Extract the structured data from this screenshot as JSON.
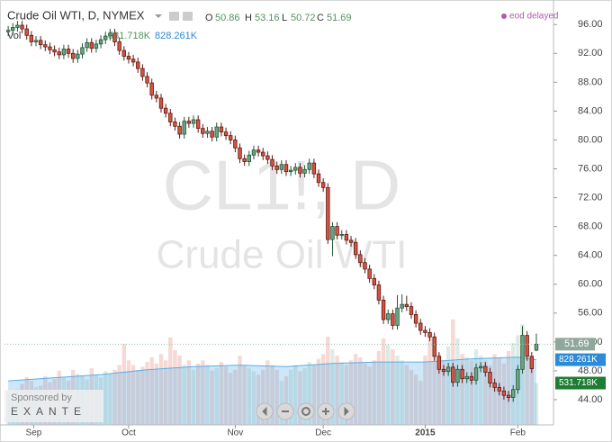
{
  "header": {
    "title": "Crude Oil WTI, D, NYMEX",
    "o": "O",
    "h": "H",
    "l": "L",
    "c": "C",
    "vol": "Vol",
    "status": "eod delayed"
  },
  "watermark": {
    "line1": "CL1!, D",
    "line2": "Crude Oil WTI"
  },
  "sponsor": {
    "label": "Sponsored by",
    "name": "EXANTE"
  },
  "chart_data": {
    "type": "candlestick",
    "up_color": "#6ba583",
    "down_color": "#d75442",
    "up_edge": "#225437",
    "down_edge": "#5b1a13",
    "xlim": [
      -0.8,
      117.7
    ],
    "xticks": [
      {
        "value": 5.5,
        "label": "Sep"
      },
      {
        "value": 26,
        "label": "Oct"
      },
      {
        "value": 49,
        "label": "Nov"
      },
      {
        "value": 68,
        "label": "Dec"
      },
      {
        "value": 90,
        "label": "2015"
      },
      {
        "value": 110,
        "label": "Feb"
      }
    ],
    "ylim": [
      40.5,
      99.4
    ],
    "yticks": [
      {
        "value": 44,
        "label": "44.00"
      },
      {
        "value": 48,
        "label": "48.00"
      },
      {
        "value": 52,
        "label": "52.00"
      },
      {
        "value": 56,
        "label": "56.00"
      },
      {
        "value": 60,
        "label": "60.00"
      },
      {
        "value": 64,
        "label": "64.00"
      },
      {
        "value": 68,
        "label": "68.00"
      },
      {
        "value": 72,
        "label": "72.00"
      },
      {
        "value": 76,
        "label": "76.00"
      },
      {
        "value": 80,
        "label": "80.00"
      },
      {
        "value": 84,
        "label": "84.00"
      },
      {
        "value": 88,
        "label": "88.00"
      },
      {
        "value": 92,
        "label": "92.00"
      },
      {
        "value": 96,
        "label": "96.00"
      }
    ],
    "open": [
      95.0,
      95.2,
      95.6,
      95.9,
      95.4,
      94.5,
      93.6,
      93.8,
      93.2,
      92.9,
      92.5,
      92.2,
      91.8,
      92.6,
      92.0,
      91.3,
      91.9,
      92.8,
      93.5,
      92.7,
      93.3,
      93.9,
      94.4,
      94.8,
      93.6,
      92.4,
      91.6,
      91.2,
      90.8,
      89.9,
      88.8,
      87.9,
      86.2,
      85.8,
      84.4,
      83.7,
      82.5,
      81.9,
      80.8,
      82.6,
      82.3,
      82.8,
      81.6,
      80.9,
      81.2,
      80.4,
      81.8,
      81.1,
      80.6,
      80.0,
      78.9,
      77.4,
      77.0,
      77.9,
      78.6,
      78.3,
      77.8,
      77.3,
      76.4,
      75.9,
      76.6,
      75.6,
      75.8,
      76.2,
      75.4,
      75.9,
      76.8,
      75.3,
      74.1,
      73.4,
      66.2,
      68.0,
      66.8,
      66.9,
      66.1,
      65.8,
      64.1,
      63.0,
      62.1,
      60.8,
      59.9,
      57.8,
      55.1,
      55.9,
      54.3,
      56.7,
      57.2,
      56.9,
      55.8,
      54.6,
      53.6,
      53.3,
      52.7,
      50.0,
      48.2,
      47.9,
      48.5,
      46.4,
      48.2,
      46.9,
      47.2,
      46.7,
      48.4,
      48.6,
      47.8,
      46.3,
      45.7,
      45.2,
      44.6,
      44.3,
      45.4,
      48.2,
      52.9,
      50.0,
      50.86
    ],
    "high": [
      95.8,
      96.2,
      96.5,
      96.5,
      96.0,
      95.1,
      94.4,
      94.4,
      93.8,
      93.5,
      93.1,
      92.8,
      93.2,
      93.2,
      92.6,
      92.5,
      93.4,
      94.1,
      94.1,
      93.9,
      94.5,
      95.0,
      95.4,
      95.4,
      94.2,
      93.0,
      92.2,
      91.8,
      91.4,
      90.5,
      89.4,
      88.5,
      86.8,
      86.4,
      85.0,
      84.3,
      83.1,
      82.5,
      83.2,
      83.2,
      83.4,
      83.4,
      82.2,
      81.8,
      81.8,
      82.4,
      82.4,
      81.7,
      81.2,
      80.6,
      79.5,
      78.0,
      78.5,
      79.2,
      79.2,
      78.9,
      78.4,
      77.9,
      77.0,
      77.2,
      77.2,
      76.4,
      76.8,
      76.8,
      76.5,
      77.4,
      77.4,
      75.9,
      74.7,
      74.0,
      68.6,
      68.6,
      67.5,
      67.5,
      66.7,
      66.4,
      64.7,
      63.6,
      62.7,
      61.4,
      60.5,
      58.4,
      56.5,
      56.5,
      58.5,
      58.6,
      58.4,
      57.5,
      56.4,
      55.2,
      54.2,
      53.9,
      53.3,
      50.6,
      48.8,
      49.1,
      49.1,
      48.8,
      48.8,
      47.8,
      47.8,
      49.0,
      49.2,
      49.2,
      48.4,
      46.9,
      46.3,
      45.8,
      45.2,
      46.0,
      48.8,
      54.2,
      53.5,
      50.6,
      53.16
    ],
    "low": [
      94.4,
      94.6,
      95.0,
      94.8,
      93.9,
      93.0,
      93.0,
      92.6,
      92.3,
      91.9,
      91.6,
      91.2,
      91.2,
      91.4,
      90.7,
      90.7,
      91.3,
      92.2,
      92.1,
      92.1,
      92.7,
      93.3,
      93.8,
      93.0,
      91.8,
      91.0,
      90.6,
      90.2,
      89.3,
      88.2,
      87.3,
      85.6,
      85.2,
      83.8,
      83.1,
      81.9,
      81.3,
      80.2,
      80.2,
      81.7,
      81.7,
      81.0,
      80.3,
      80.3,
      79.8,
      79.8,
      80.5,
      80.0,
      79.4,
      78.3,
      76.8,
      76.4,
      76.4,
      77.3,
      77.7,
      77.2,
      76.7,
      75.8,
      75.3,
      75.3,
      75.0,
      75.0,
      75.2,
      74.8,
      74.8,
      75.3,
      74.7,
      73.5,
      72.8,
      65.6,
      63.9,
      66.2,
      66.2,
      65.5,
      65.2,
      63.5,
      62.4,
      61.5,
      60.2,
      59.3,
      57.2,
      54.5,
      54.5,
      53.7,
      53.7,
      56.1,
      56.3,
      55.2,
      54.0,
      53.0,
      52.7,
      52.1,
      49.4,
      47.6,
      47.3,
      47.3,
      45.8,
      45.8,
      46.3,
      46.3,
      46.1,
      46.1,
      47.8,
      47.2,
      45.7,
      45.1,
      44.6,
      44.0,
      43.7,
      43.7,
      44.8,
      47.6,
      49.4,
      47.7,
      50.72
    ],
    "close": [
      95.2,
      95.6,
      95.9,
      95.4,
      94.5,
      93.6,
      93.8,
      93.2,
      92.9,
      92.5,
      92.2,
      91.8,
      92.6,
      92.0,
      91.3,
      91.9,
      92.8,
      93.5,
      92.7,
      93.3,
      93.9,
      94.4,
      94.8,
      93.6,
      92.4,
      91.6,
      91.2,
      90.8,
      89.9,
      88.8,
      87.9,
      86.2,
      85.8,
      84.4,
      83.7,
      82.5,
      81.9,
      80.8,
      82.6,
      82.3,
      82.8,
      81.6,
      80.9,
      81.2,
      80.4,
      81.8,
      81.1,
      80.6,
      80.0,
      78.9,
      77.4,
      77.0,
      77.9,
      78.6,
      78.3,
      77.8,
      77.3,
      76.4,
      75.9,
      76.6,
      75.6,
      75.8,
      76.2,
      75.4,
      75.9,
      76.8,
      75.3,
      74.1,
      73.4,
      66.2,
      68.0,
      66.8,
      66.9,
      66.1,
      65.8,
      64.1,
      63.0,
      62.1,
      60.8,
      59.9,
      57.8,
      55.1,
      55.9,
      54.3,
      56.7,
      57.2,
      56.9,
      55.8,
      54.6,
      53.6,
      53.3,
      52.7,
      50.0,
      48.2,
      47.9,
      48.5,
      46.4,
      48.2,
      46.9,
      47.2,
      46.7,
      48.4,
      48.6,
      47.8,
      46.3,
      45.7,
      45.2,
      44.6,
      44.3,
      45.4,
      48.2,
      52.9,
      50.0,
      48.3,
      51.69
    ],
    "vlim": [
      0,
      5400
    ],
    "volume": {
      "values": [
        420,
        380,
        450,
        520,
        610,
        560,
        480,
        500,
        620,
        540,
        580,
        690,
        600,
        560,
        700,
        650,
        620,
        580,
        720,
        640,
        600,
        680,
        650,
        700,
        760,
        1030,
        820,
        760,
        700,
        740,
        800,
        860,
        780,
        900,
        820,
        1110,
        950,
        880,
        760,
        820,
        700,
        780,
        820,
        760,
        690,
        720,
        800,
        740,
        660,
        700,
        880,
        760,
        720,
        680,
        640,
        700,
        820,
        760,
        700,
        560,
        620,
        700,
        760,
        680,
        720,
        800,
        760,
        840,
        900,
        1120,
        960,
        880,
        800,
        760,
        820,
        900,
        860,
        780,
        740,
        820,
        940,
        1100,
        1020,
        960,
        880,
        820,
        760,
        700,
        640,
        560,
        880,
        1130,
        960,
        900,
        820,
        1000,
        1340,
        1100,
        900,
        860,
        820,
        960,
        880,
        820,
        760,
        900,
        860,
        780,
        940,
        1040,
        1140,
        1280,
        1020,
        880,
        531.718
      ],
      "value_labels": [
        null,
        null,
        null,
        null,
        null,
        null,
        null,
        null,
        null,
        null,
        null,
        null,
        null,
        null,
        null,
        null,
        null,
        null,
        null,
        null,
        null,
        null,
        null,
        null,
        null,
        null,
        null,
        null,
        null,
        null,
        null,
        null,
        null,
        null,
        null,
        null,
        null,
        null,
        null,
        null,
        null,
        null,
        null,
        null,
        null,
        null,
        null,
        null,
        null,
        null,
        null,
        null,
        null,
        null,
        null,
        null,
        null,
        null,
        null,
        null,
        null,
        null,
        null,
        null,
        null,
        null,
        null,
        null,
        null,
        null,
        null,
        null,
        null,
        null,
        null,
        null,
        null,
        null,
        null,
        null,
        null,
        null,
        null,
        null,
        null,
        null,
        null,
        null,
        null,
        null,
        null,
        null,
        null,
        null,
        null,
        null,
        null,
        null,
        null,
        null,
        null,
        null,
        null,
        null,
        null,
        null,
        null,
        null,
        null,
        null,
        null,
        null,
        null,
        null,
        "531.718K"
      ]
    },
    "volume_ma": {
      "color": "#5aaee8",
      "x": [
        0,
        10,
        20,
        30,
        40,
        50,
        60,
        70,
        80,
        90,
        100,
        110,
        114
      ],
      "values": [
        560,
        600,
        640,
        700,
        740,
        760,
        740,
        780,
        800,
        800,
        840,
        860,
        828.261
      ],
      "value_labels": [
        null,
        null,
        null,
        null,
        null,
        null,
        null,
        null,
        null,
        null,
        null,
        null,
        "828.261K"
      ]
    }
  }
}
